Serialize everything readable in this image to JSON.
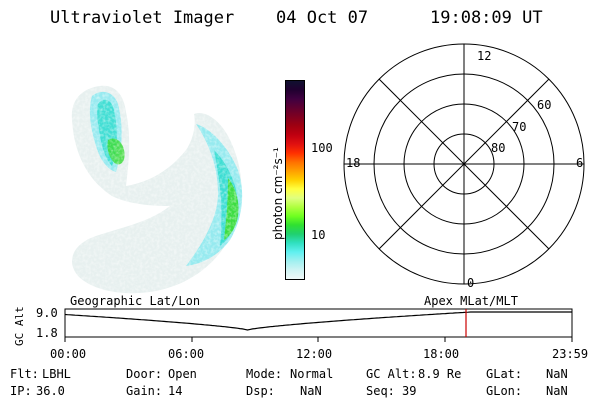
{
  "header": {
    "instrument": "Ultraviolet Imager",
    "date": "04 Oct 07",
    "time": "19:08:09 UT"
  },
  "colorbar": {
    "unit_label": "photon cm⁻²s⁻¹",
    "ticks": [
      "100",
      "10"
    ],
    "colors": [
      "#101030",
      "#200030",
      "#400040",
      "#600030",
      "#800020",
      "#a00010",
      "#c00010",
      "#e01010",
      "#ff3000",
      "#ff7000",
      "#ffa000",
      "#ffd000",
      "#ffff40",
      "#e0ff80",
      "#b0ff40",
      "#70ff20",
      "#30e030",
      "#20d070",
      "#30e0c0",
      "#60f0f0",
      "#a0f0f0",
      "#d0f4f4",
      "#f0f8f8"
    ]
  },
  "polar_plot": {
    "mlt_labels": [
      "12",
      "18",
      "6",
      "0"
    ],
    "lat_labels": [
      "60",
      "70",
      "80"
    ]
  },
  "strip": {
    "left_title": "Geographic Lat/Lon",
    "right_title": "Apex MLat/MLT",
    "ylabel": "GC Alt",
    "y_ticks": [
      "9.0",
      "1.8"
    ],
    "x_ticks": [
      "00:00",
      "06:00",
      "12:00",
      "18:00",
      "23:59"
    ],
    "current_marker_color": "#cc0000"
  },
  "status": {
    "row1": [
      {
        "label": "Flt:",
        "value": "LBHL"
      },
      {
        "label": "Door:",
        "value": "Open"
      },
      {
        "label": "Mode:",
        "value": "Normal"
      },
      {
        "label": "GC Alt:",
        "value": "8.9 Re"
      },
      {
        "label": "GLat:",
        "value": "NaN"
      }
    ],
    "row2": [
      {
        "label": "IP:",
        "value": "36.0"
      },
      {
        "label": "Gain:",
        "value": "14"
      },
      {
        "label": "Dsp:",
        "value": "NaN"
      },
      {
        "label": "Seq:",
        "value": "39"
      },
      {
        "label": "GLon:",
        "value": "NaN"
      }
    ]
  },
  "colors": {
    "aurora_low": "#e6efee",
    "aurora_mid": "#8fe9ef",
    "aurora_cyan": "#33dccf",
    "aurora_green": "#3ddc3a",
    "marker": "#cc0000"
  }
}
